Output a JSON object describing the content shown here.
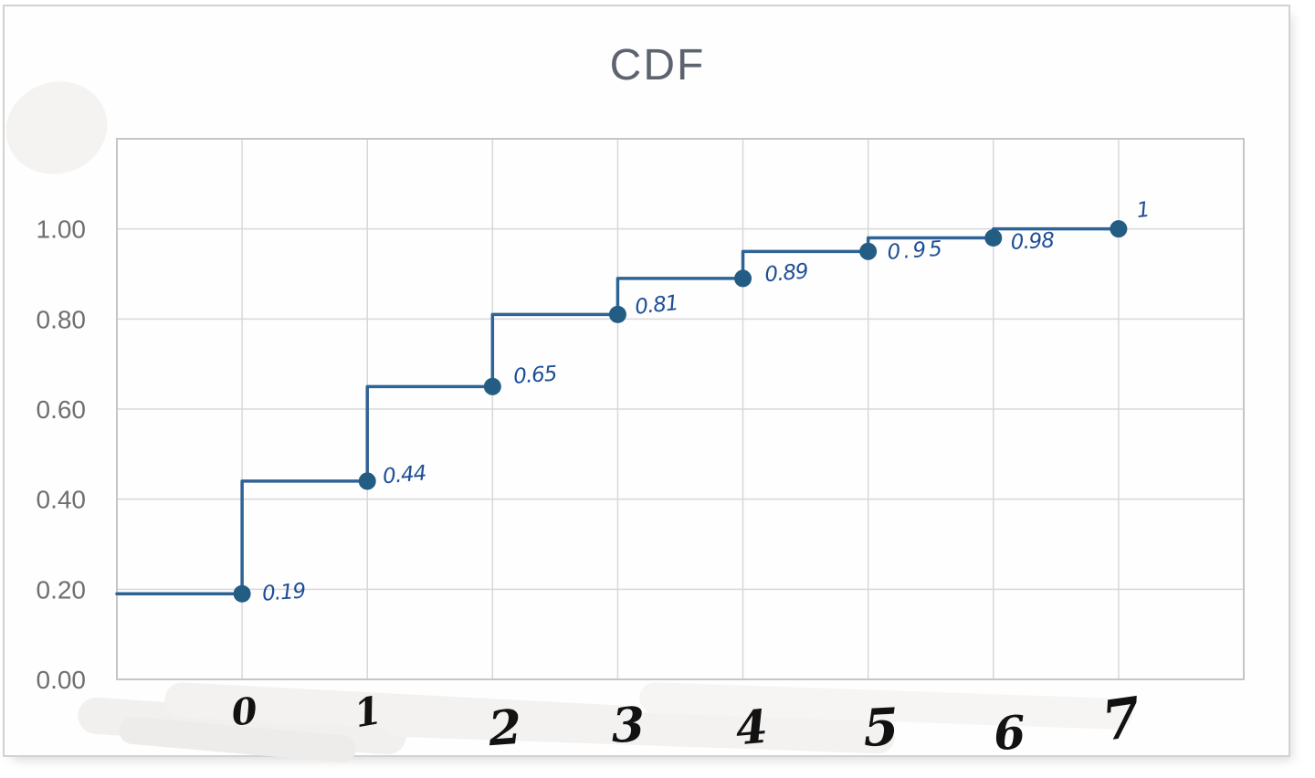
{
  "chart_data": {
    "type": "line",
    "step_style": "vertical-then-horizontal",
    "title": "CDF",
    "x": [
      0,
      1,
      2,
      3,
      4,
      5,
      6,
      7
    ],
    "series": [
      {
        "name": "CDF",
        "values": [
          0.19,
          0.44,
          0.65,
          0.81,
          0.89,
          0.95,
          0.98,
          1.0
        ]
      }
    ],
    "point_labels": [
      "0.19",
      "0.44",
      "0.65",
      "0.81",
      "0.89",
      "0.95",
      "0.98",
      "1"
    ],
    "x_tick_labels": [
      "0",
      "1",
      "2",
      "3",
      "4",
      "5",
      "6",
      "7"
    ],
    "y_ticks": [
      {
        "label": "1.00",
        "value": 1.0
      },
      {
        "label": "0.80",
        "value": 0.8
      },
      {
        "label": "0.60",
        "value": 0.6
      },
      {
        "label": "0.40",
        "value": 0.4
      },
      {
        "label": "0.20",
        "value": 0.2
      },
      {
        "label": "0.00",
        "value": 0.0
      }
    ],
    "xlim": [
      -1,
      8
    ],
    "ylim": [
      0,
      1.2
    ],
    "grid": true,
    "legend": "none",
    "line_begins_at_x": -1,
    "annotations_handwritten": true,
    "colors": {
      "line": "#2e6396",
      "marker": "#235d84",
      "handwritten_ink": "#1e4f96",
      "x_tick_ink": "#121212",
      "y_tick_text": "#6f6f6f",
      "title_text": "#5d646f",
      "gridline": "#d8d8d8",
      "plot_border": "#c6c6c6"
    }
  }
}
